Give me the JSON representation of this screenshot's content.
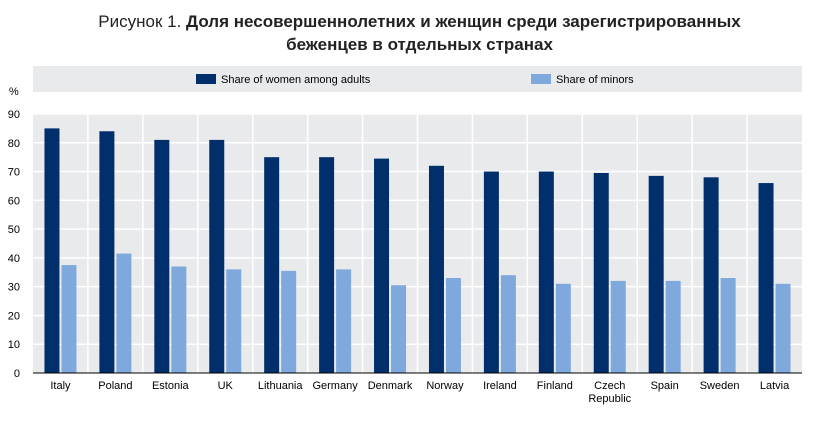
{
  "title": {
    "prefix": "Рисунок 1. ",
    "line1": "Доля несовершеннолетних и женщин среди зарегистрированных",
    "line2": "беженцев в отдельных странах"
  },
  "chart_data": {
    "type": "bar",
    "ylabel": "%",
    "ylim": [
      0,
      90
    ],
    "yticks": [
      0,
      10,
      20,
      30,
      40,
      50,
      60,
      70,
      80,
      90
    ],
    "grid": true,
    "legend_position": "top",
    "categories": [
      "Italy",
      "Poland",
      "Estonia",
      "UK",
      "Lithuania",
      "Germany",
      "Denmark",
      "Norway",
      "Ireland",
      "Finland",
      "Czech Republic",
      "Spain",
      "Sweden",
      "Latvia"
    ],
    "category_lines": [
      [
        "Italy"
      ],
      [
        "Poland"
      ],
      [
        "Estonia"
      ],
      [
        "UK"
      ],
      [
        "Lithuania"
      ],
      [
        "Germany"
      ],
      [
        "Denmark"
      ],
      [
        "Norway"
      ],
      [
        "Ireland"
      ],
      [
        "Finland"
      ],
      [
        "Czech",
        "Republic"
      ],
      [
        "Spain"
      ],
      [
        "Sweden"
      ],
      [
        "Latvia"
      ]
    ],
    "series": [
      {
        "name": "Share of women among adults",
        "color": "#002F6C",
        "values": [
          85,
          84,
          81,
          81,
          75,
          75,
          74.5,
          72,
          70,
          70,
          69.5,
          68.5,
          68,
          66
        ]
      },
      {
        "name": "Share of minors",
        "color": "#7FA8DC",
        "values": [
          37.5,
          41.5,
          37,
          36,
          35.5,
          36,
          30.5,
          33,
          34,
          31,
          32,
          32,
          33,
          31
        ]
      }
    ]
  }
}
